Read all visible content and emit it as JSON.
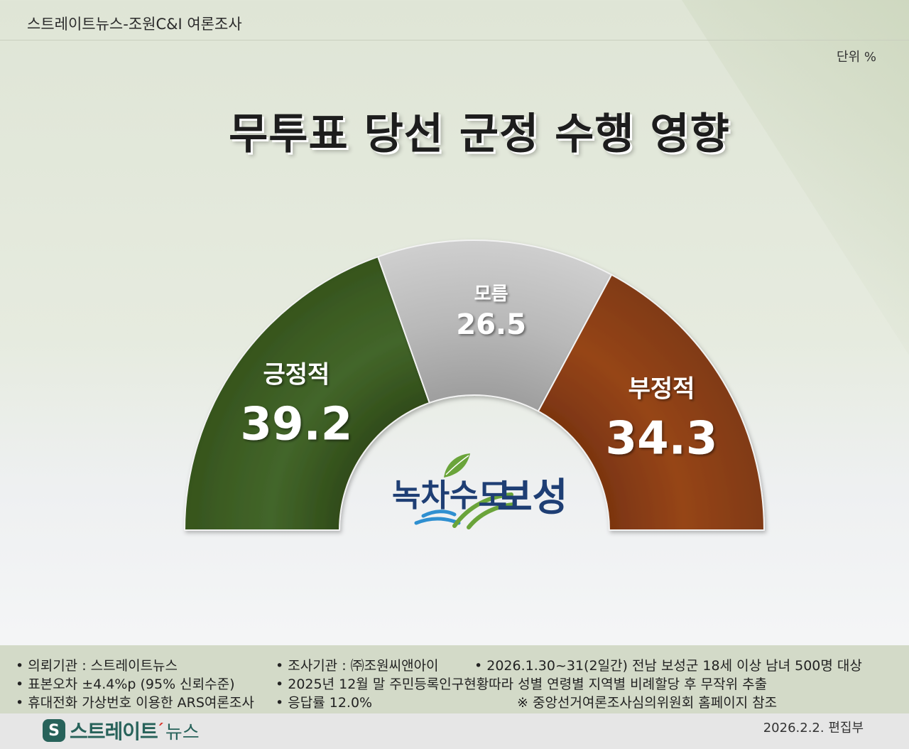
{
  "header": {
    "source_title": "스트레이트뉴스-조원C&I 여론조사",
    "unit": "단위 %",
    "title": "무투표 당선 군정 수행 영향"
  },
  "colors": {
    "positive": "#3f6022",
    "unknown": "#b3b3b3",
    "negative": "#8e3f16"
  },
  "center_logo": {
    "text_left": "녹차수도",
    "text_right": "보성",
    "icon": "tea-leaf-waves-icon"
  },
  "chart_data": {
    "type": "pie",
    "variant": "half-donut gauge",
    "title": "무투표 당선 군정 수행 영향",
    "unit": "%",
    "categories": [
      "긍정적",
      "모름",
      "부정적"
    ],
    "values": [
      39.2,
      26.5,
      34.3
    ],
    "value_labels": [
      "39.2",
      "26.5",
      "34.3"
    ],
    "colors": [
      "#3f6022",
      "#b3b3b3",
      "#8e3f16"
    ],
    "order": "left-to-right"
  },
  "footer": {
    "notes": [
      "• 의뢰기관 : 스트레이트뉴스",
      "• 조사기관 : ㈜조원씨앤아이",
      "• 2026.1.30~31(2일간) 전남 보성군 18세 이상 남녀 500명 대상",
      "• 표본오차 ±4.4%p (95% 신뢰수준)",
      "• 2025년 12월 말 주민등록인구현황따라 성별 연령별 지역별 비례할당 후 무작위 추출",
      "• 휴대전화 가상번호 이용한 ARS여론조사",
      "• 응답률 12.0%",
      "※ 중앙선거여론조사심의위원회 홈페이지 참조"
    ]
  },
  "bottom": {
    "logo_text": "스트레이트",
    "logo_news": "뉴스",
    "date": "2026.2.2. 편집부"
  }
}
